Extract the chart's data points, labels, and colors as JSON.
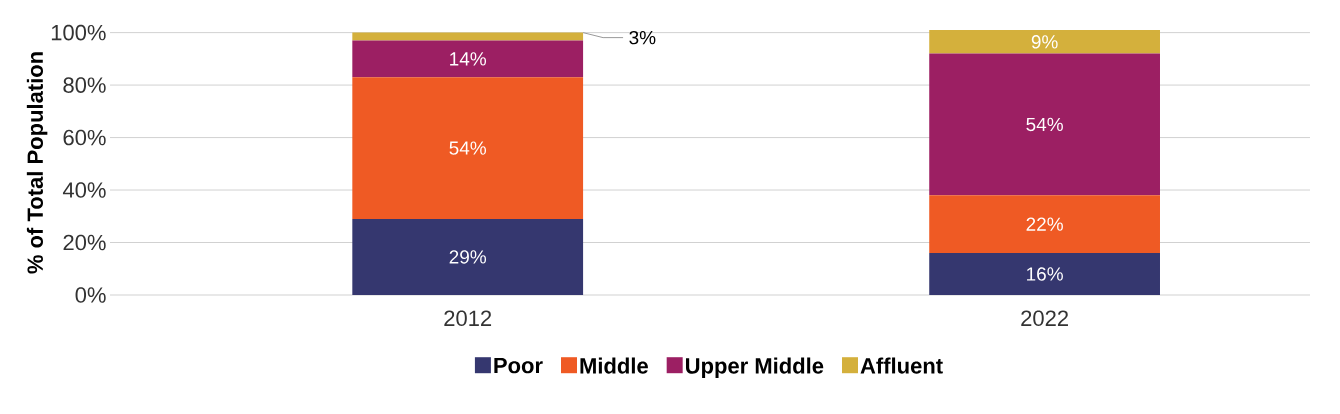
{
  "chart_data": {
    "type": "bar",
    "stacked": true,
    "ylabel": "% of Total Population",
    "categories": [
      "2012",
      "2022"
    ],
    "series": [
      {
        "name": "Poor",
        "color": "#35376f",
        "values": [
          29,
          16
        ],
        "value_labels": [
          "29%",
          "16%"
        ]
      },
      {
        "name": "Middle",
        "color": "#ef5a24",
        "values": [
          54,
          22
        ],
        "value_labels": [
          "54%",
          "22%"
        ]
      },
      {
        "name": "Upper Middle",
        "color": "#9c1f63",
        "values": [
          14,
          54
        ],
        "value_labels": [
          "14%",
          "54%"
        ]
      },
      {
        "name": "Affluent",
        "color": "#d4b03c",
        "values": [
          3,
          9
        ],
        "value_labels": [
          "3%",
          "9%"
        ]
      }
    ],
    "ylim": [
      0,
      101
    ],
    "yticks": [
      {
        "value": 0,
        "label": "0%"
      },
      {
        "value": 20,
        "label": "20%"
      },
      {
        "value": 40,
        "label": "40%"
      },
      {
        "value": 60,
        "label": "60%"
      },
      {
        "value": 80,
        "label": "80%"
      },
      {
        "value": 100,
        "label": "100%"
      }
    ],
    "grid": "y",
    "legend": "bottom"
  }
}
